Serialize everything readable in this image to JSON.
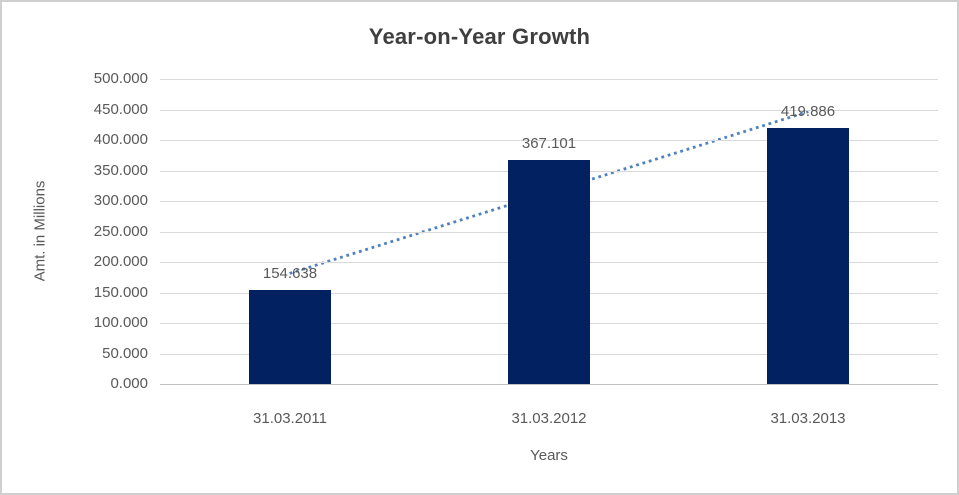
{
  "chart_data": {
    "type": "bar",
    "title": "Year-on-Year Growth",
    "xlabel": "Years",
    "ylabel": "Amt. in Millions",
    "categories": [
      "31.03.2011",
      "31.03.2012",
      "31.03.2013"
    ],
    "values": [
      154.638,
      367.101,
      419.886
    ],
    "data_labels": [
      "154.638",
      "367.101",
      "419.886"
    ],
    "yticks": [
      "500.000",
      "450.000",
      "400.000",
      "350.000",
      "300.000",
      "250.000",
      "200.000",
      "150.000",
      "100.000",
      "50.000",
      "0.000"
    ],
    "ylim": [
      0,
      500
    ],
    "grid": "horizontal",
    "legend": "none",
    "trendline": {
      "type": "linear",
      "style": "dotted"
    },
    "colors": {
      "bar": "#012161",
      "trendline": "#4f81bd",
      "gridline": "#d9d9d9",
      "axis_line": "#bfbfbf",
      "title_text": "#3f3f3f",
      "label_text": "#595959"
    }
  }
}
